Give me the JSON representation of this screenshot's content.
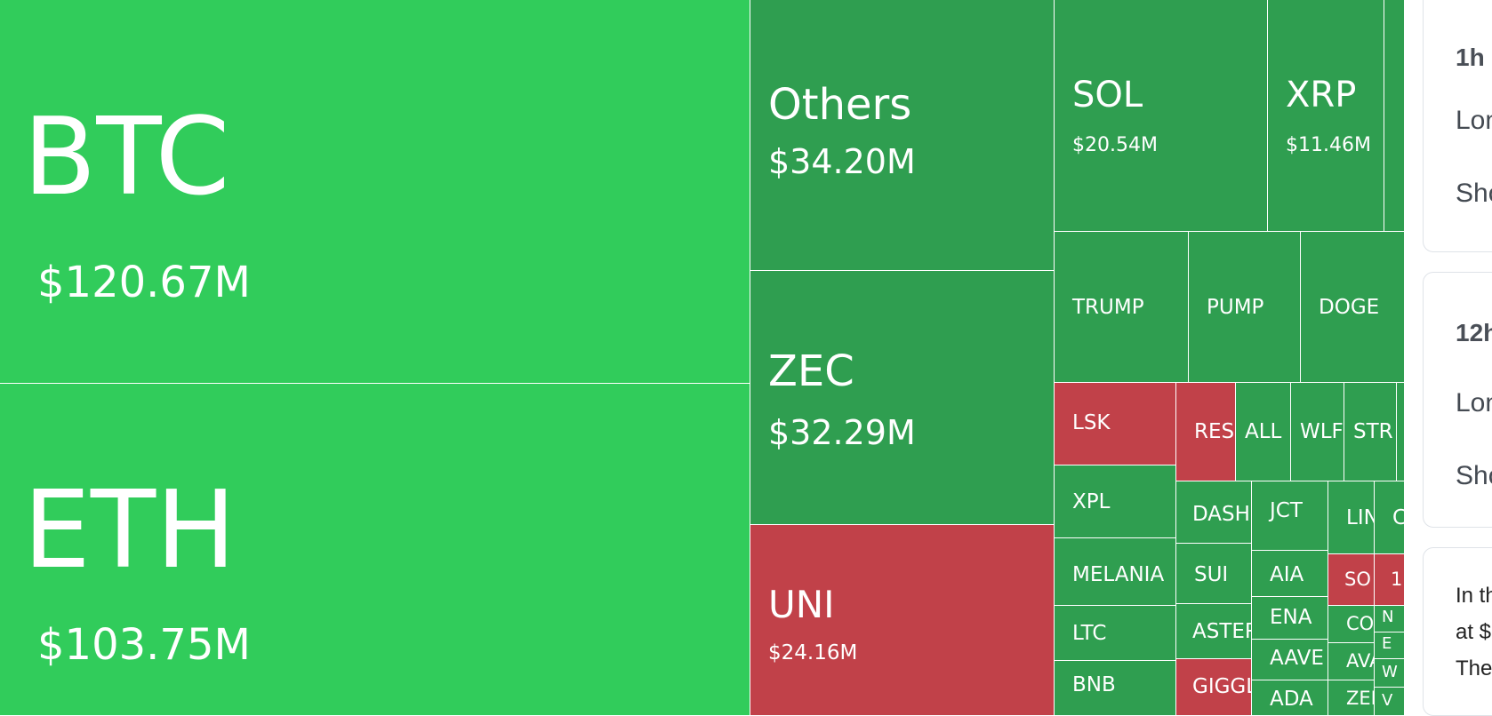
{
  "chart_data": {
    "type": "treemap",
    "title": "",
    "unit": "USD",
    "colors": {
      "long": "#31cc5b",
      "mid": "#2f9e50",
      "short": "#c14149"
    },
    "items": [
      {
        "symbol": "BTC",
        "value": "$120.67M",
        "amount_m": 120.67,
        "color": "long"
      },
      {
        "symbol": "ETH",
        "value": "$103.75M",
        "amount_m": 103.75,
        "color": "long"
      },
      {
        "symbol": "Others",
        "value": "$34.20M",
        "amount_m": 34.2,
        "color": "mid"
      },
      {
        "symbol": "ZEC",
        "value": "$32.29M",
        "amount_m": 32.29,
        "color": "mid"
      },
      {
        "symbol": "UNI",
        "value": "$24.16M",
        "amount_m": 24.16,
        "color": "short"
      },
      {
        "symbol": "SOL",
        "value": "$20.54M",
        "amount_m": 20.54,
        "color": "mid"
      },
      {
        "symbol": "XRP",
        "value": "$11.46M",
        "amount_m": 11.46,
        "color": "mid"
      },
      {
        "symbol": "TRUMP",
        "value": "",
        "color": "mid"
      },
      {
        "symbol": "PUMP",
        "value": "",
        "color": "mid"
      },
      {
        "symbol": "DOGE",
        "value": "",
        "color": "mid"
      },
      {
        "symbol": "LSK",
        "value": "",
        "color": "short"
      },
      {
        "symbol": "RESO",
        "value": "",
        "color": "short"
      },
      {
        "symbol": "ALL",
        "value": "",
        "color": "mid"
      },
      {
        "symbol": "WLF",
        "value": "",
        "color": "mid"
      },
      {
        "symbol": "STR",
        "value": "",
        "color": "mid"
      },
      {
        "symbol": "XPL",
        "value": "",
        "color": "mid"
      },
      {
        "symbol": "DASH",
        "value": "",
        "color": "mid"
      },
      {
        "symbol": "JCT",
        "value": "",
        "color": "mid"
      },
      {
        "symbol": "LIN",
        "value": "",
        "color": "mid"
      },
      {
        "symbol": "C",
        "value": "",
        "color": "mid"
      },
      {
        "symbol": "MELANIA",
        "value": "",
        "color": "mid"
      },
      {
        "symbol": "SUI",
        "value": "",
        "color": "mid"
      },
      {
        "symbol": "AIA",
        "value": "",
        "color": "mid"
      },
      {
        "symbol": "SO",
        "value": "",
        "color": "short"
      },
      {
        "symbol": "1",
        "value": "",
        "color": "short"
      },
      {
        "symbol": "LTC",
        "value": "",
        "color": "mid"
      },
      {
        "symbol": "ASTER",
        "value": "",
        "color": "mid"
      },
      {
        "symbol": "ENA",
        "value": "",
        "color": "mid"
      },
      {
        "symbol": "CO",
        "value": "",
        "color": "mid"
      },
      {
        "symbol": "N",
        "value": "",
        "color": "mid"
      },
      {
        "symbol": "AAVE",
        "value": "",
        "color": "mid"
      },
      {
        "symbol": "AVA",
        "value": "",
        "color": "mid"
      },
      {
        "symbol": "E",
        "value": "",
        "color": "mid"
      },
      {
        "symbol": "BNB",
        "value": "",
        "color": "mid"
      },
      {
        "symbol": "GIGGLE",
        "value": "",
        "color": "short"
      },
      {
        "symbol": "ADA",
        "value": "",
        "color": "mid"
      },
      {
        "symbol": "ZEN",
        "value": "",
        "color": "mid"
      },
      {
        "symbol": "W",
        "value": "",
        "color": "mid"
      },
      {
        "symbol": "V",
        "value": "",
        "color": "mid"
      }
    ]
  },
  "side_panels": {
    "p1": {
      "title": "1h",
      "long_label": "Lon",
      "short_label": "Sho"
    },
    "p2": {
      "title": "12h",
      "long_label": "Lon",
      "short_label": "Sho"
    },
    "p3": {
      "line1": "In th",
      "line2": "at $",
      "line3": "The"
    }
  }
}
